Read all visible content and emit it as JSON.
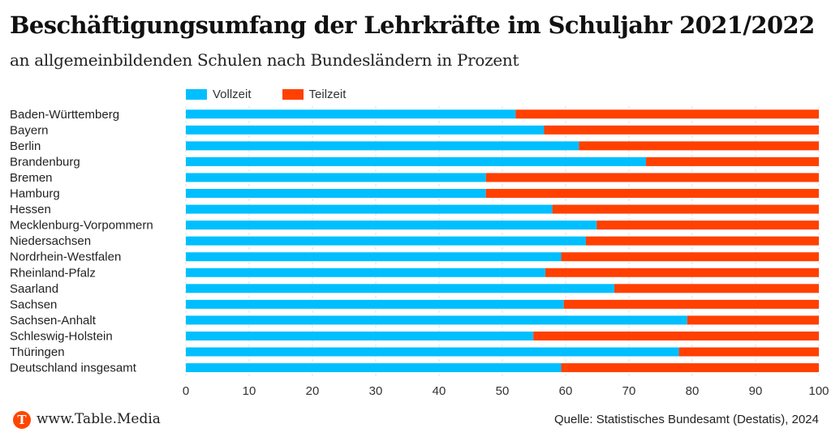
{
  "header": {
    "title": "Beschäftigungsumfang der Lehrkräfte im Schuljahr 2021/2022",
    "subtitle": "an allgemeinbildenden Schulen nach Bundesländern in Prozent"
  },
  "footer": {
    "logo_letter": "T",
    "url": "www.Table.Media",
    "source": "Quelle: Statistisches Bundesamt (Destatis), 2024"
  },
  "colors": {
    "vollzeit": "#00bfff",
    "teilzeit": "#ff4000",
    "logo": "#ff4500"
  },
  "chart_data": {
    "type": "bar",
    "orientation": "horizontal",
    "stacked": true,
    "title": "Beschäftigungsumfang der Lehrkräfte im Schuljahr 2021/2022",
    "subtitle": "an allgemeinbildenden Schulen nach Bundesländern in Prozent",
    "xlabel": "",
    "ylabel": "",
    "xlim": [
      0,
      100
    ],
    "x_ticks": [
      0,
      10,
      20,
      30,
      40,
      50,
      60,
      70,
      80,
      90,
      100
    ],
    "grid": true,
    "legend_position": "top-left",
    "categories": [
      "Baden-Württemberg",
      "Bayern",
      "Berlin",
      "Brandenburg",
      "Bremen",
      "Hamburg",
      "Hessen",
      "Mecklenburg-Vorpommern",
      "Niedersachsen",
      "Nordrhein-Westfalen",
      "Rheinland-Pfalz",
      "Saarland",
      "Sachsen",
      "Sachsen-Anhalt",
      "Schleswig-Holstein",
      "Thüringen",
      "Deutschland insgesamt"
    ],
    "series": [
      {
        "name": "Vollzeit",
        "color": "#00bfff",
        "values": [
          52.1,
          56.6,
          62.1,
          72.7,
          47.4,
          47.4,
          57.9,
          64.9,
          63.2,
          59.3,
          56.8,
          67.7,
          59.7,
          79.2,
          54.9,
          77.9,
          59.3
        ]
      },
      {
        "name": "Teilzeit",
        "color": "#ff4000",
        "values": [
          47.9,
          43.4,
          37.9,
          27.3,
          52.6,
          52.6,
          42.1,
          35.1,
          36.8,
          40.7,
          43.2,
          32.3,
          40.3,
          20.8,
          45.1,
          22.1,
          40.7
        ]
      }
    ]
  }
}
